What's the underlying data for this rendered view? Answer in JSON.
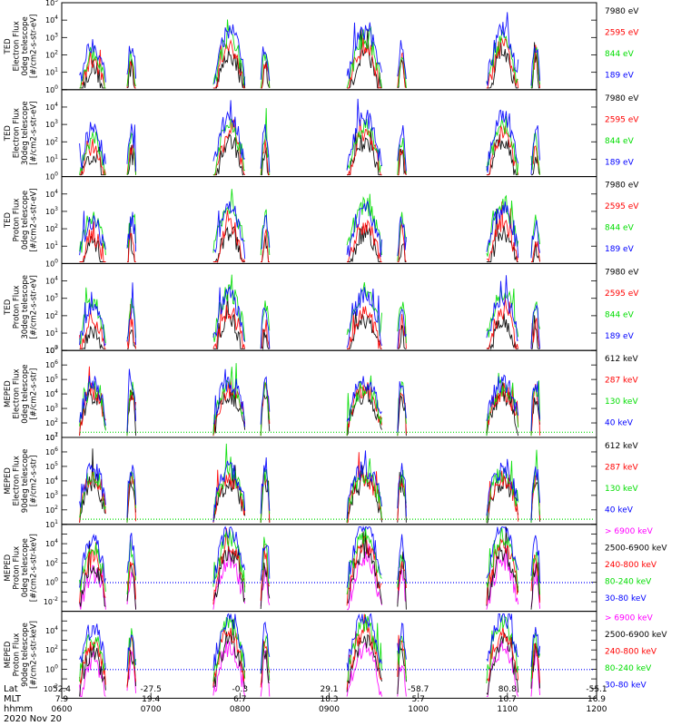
{
  "chart_data": {
    "type": "line",
    "title": "",
    "date_label": "2020 Nov 20",
    "x_row_labels": [
      "Lat",
      "MLT",
      "hhmm"
    ],
    "x_ticks": [
      {
        "lat": "52.4",
        "mlt": "7.9",
        "hhmm": "0600"
      },
      {
        "lat": "-27.5",
        "mlt": "19.4",
        "hhmm": "0700"
      },
      {
        "lat": "-0.3",
        "mlt": "6.7",
        "hhmm": "0800"
      },
      {
        "lat": "29.1",
        "mlt": "18.3",
        "hhmm": "0900"
      },
      {
        "lat": "-58.7",
        "mlt": "5.7",
        "hhmm": "1000"
      },
      {
        "lat": "80.8",
        "mlt": "10.7",
        "hhmm": "1100"
      },
      {
        "lat": "-55.1",
        "mlt": "16.9",
        "hhmm": "1200"
      }
    ],
    "panels": [
      {
        "id": "ted-electron-0",
        "ylabel": [
          "TED",
          "Electron Flux",
          "0deg telescope",
          "[#/cm2-s-str-eV]"
        ],
        "ylog": [
          0,
          5
        ],
        "tick_exps": [
          0,
          1,
          2,
          3,
          4,
          5
        ],
        "legend": [
          {
            "label": "7980 eV",
            "color": "#000000"
          },
          {
            "label": "2595 eV",
            "color": "#ff0000"
          },
          {
            "label": "844 eV",
            "color": "#00dd00"
          },
          {
            "label": "189 eV",
            "color": "#0000ff"
          }
        ]
      },
      {
        "id": "ted-electron-30",
        "ylabel": [
          "TED",
          "Electron Flux",
          "30deg telescope",
          "[#/cm2-s-str-eV]"
        ],
        "ylog": [
          0,
          5
        ],
        "tick_exps": [
          0,
          1,
          2,
          3,
          4
        ],
        "legend": [
          {
            "label": "7980 eV",
            "color": "#000000"
          },
          {
            "label": "2595 eV",
            "color": "#ff0000"
          },
          {
            "label": "844 eV",
            "color": "#00dd00"
          },
          {
            "label": "189 eV",
            "color": "#0000ff"
          }
        ]
      },
      {
        "id": "ted-proton-0",
        "ylabel": [
          "TED",
          "Proton Flux",
          "0deg telescope",
          "[#/cm2-s-str-eV]"
        ],
        "ylog": [
          0,
          5
        ],
        "tick_exps": [
          0,
          1,
          2,
          3,
          4
        ],
        "legend": [
          {
            "label": "7980 eV",
            "color": "#000000"
          },
          {
            "label": "2595 eV",
            "color": "#ff0000"
          },
          {
            "label": "844 eV",
            "color": "#00dd00"
          },
          {
            "label": "189 eV",
            "color": "#0000ff"
          }
        ]
      },
      {
        "id": "ted-proton-30",
        "ylabel": [
          "TED",
          "Proton Flux",
          "30deg telescope",
          "[#/cm2-s-str-eV]"
        ],
        "ylog": [
          0,
          5
        ],
        "tick_exps": [
          0,
          1,
          2,
          3,
          4
        ],
        "legend": [
          {
            "label": "7980 eV",
            "color": "#000000"
          },
          {
            "label": "2595 eV",
            "color": "#ff0000"
          },
          {
            "label": "844 eV",
            "color": "#00dd00"
          },
          {
            "label": "189 eV",
            "color": "#0000ff"
          }
        ]
      },
      {
        "id": "meped-electron-0",
        "ylabel": [
          "MEPED",
          "Electron Flux",
          "0deg telescope",
          "[#/cm2-s-str]"
        ],
        "ylog": [
          1,
          7
        ],
        "tick_exps": [
          1,
          2,
          3,
          4,
          5,
          6,
          7
        ],
        "legend": [
          {
            "label": "612 keV",
            "color": "#000000"
          },
          {
            "label": "287 keV",
            "color": "#ff0000"
          },
          {
            "label": "130 keV",
            "color": "#00dd00"
          },
          {
            "label": "40 keV",
            "color": "#0000ff"
          }
        ]
      },
      {
        "id": "meped-electron-90",
        "ylabel": [
          "MEPED",
          "Electron Flux",
          "90deg telescope",
          "[#/cm2-s-str]"
        ],
        "ylog": [
          1,
          7
        ],
        "tick_exps": [
          1,
          2,
          3,
          4,
          5,
          6,
          7
        ],
        "legend": [
          {
            "label": "612 keV",
            "color": "#000000"
          },
          {
            "label": "287 keV",
            "color": "#ff0000"
          },
          {
            "label": "130 keV",
            "color": "#00dd00"
          },
          {
            "label": "40 keV",
            "color": "#0000ff"
          }
        ]
      },
      {
        "id": "meped-proton-0",
        "ylabel": [
          "MEPED",
          "Proton Flux",
          "0deg telescope",
          "[#/cm2-s-str-keV]"
        ],
        "ylog": [
          -3,
          6
        ],
        "tick_exps": [
          -2,
          0,
          2,
          4
        ],
        "legend": [
          {
            "label": "> 6900 keV",
            "color": "#ff00ff"
          },
          {
            "label": "2500-6900 keV",
            "color": "#000000"
          },
          {
            "label": "240-800 keV",
            "color": "#ff0000"
          },
          {
            "label": "80-240 keV",
            "color": "#00dd00"
          },
          {
            "label": "30-80 keV",
            "color": "#0000ff"
          }
        ]
      },
      {
        "id": "meped-proton-90",
        "ylabel": [
          "MEPED",
          "Proton Flux",
          "90deg telescope",
          "[#/cm2-s-str-keV]"
        ],
        "ylog": [
          -3,
          6
        ],
        "tick_exps": [
          -2,
          0,
          2,
          4
        ],
        "legend": [
          {
            "label": "> 6900 keV",
            "color": "#ff00ff"
          },
          {
            "label": "2500-6900 keV",
            "color": "#000000"
          },
          {
            "label": "240-800 keV",
            "color": "#ff0000"
          },
          {
            "label": "80-240 keV",
            "color": "#00dd00"
          },
          {
            "label": "30-80 keV",
            "color": "#0000ff"
          }
        ]
      }
    ],
    "passes_hhmm": [
      [
        "0612",
        "0630"
      ],
      [
        "0644",
        "0650"
      ],
      [
        "0742",
        "0804"
      ],
      [
        "0814",
        "0820"
      ],
      [
        "0912",
        "0936"
      ],
      [
        "0946",
        "0952"
      ],
      [
        "1046",
        "1108"
      ],
      [
        "1116",
        "1122"
      ]
    ]
  }
}
